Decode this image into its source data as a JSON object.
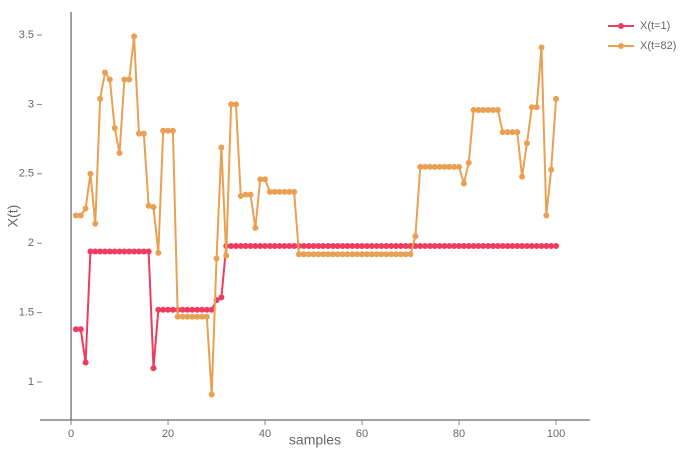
{
  "chart_data": {
    "type": "line",
    "xlabel": "samples",
    "ylabel": "X(t)",
    "x": [
      1,
      2,
      3,
      4,
      5,
      6,
      7,
      8,
      9,
      10,
      11,
      12,
      13,
      14,
      15,
      16,
      17,
      18,
      19,
      20,
      21,
      22,
      23,
      24,
      25,
      26,
      27,
      28,
      29,
      30,
      31,
      32,
      33,
      34,
      35,
      36,
      37,
      38,
      39,
      40,
      41,
      42,
      43,
      44,
      45,
      46,
      47,
      48,
      49,
      50,
      51,
      52,
      53,
      54,
      55,
      56,
      57,
      58,
      59,
      60,
      61,
      62,
      63,
      64,
      65,
      66,
      67,
      68,
      69,
      70,
      71,
      72,
      73,
      74,
      75,
      76,
      77,
      78,
      79,
      80,
      81,
      82,
      83,
      84,
      85,
      86,
      87,
      88,
      89,
      90,
      91,
      92,
      93,
      94,
      95,
      96,
      97,
      98,
      99,
      100
    ],
    "series": [
      {
        "name": "X(t=1)",
        "color": "#ef3b5f",
        "values": [
          1.38,
          1.38,
          1.14,
          1.94,
          1.94,
          1.94,
          1.94,
          1.94,
          1.94,
          1.94,
          1.94,
          1.94,
          1.94,
          1.94,
          1.94,
          1.94,
          1.1,
          1.52,
          1.52,
          1.52,
          1.52,
          1.52,
          1.52,
          1.52,
          1.52,
          1.52,
          1.52,
          1.52,
          1.52,
          1.59,
          1.61,
          1.98,
          1.98,
          1.98,
          1.98,
          1.98,
          1.98,
          1.98,
          1.98,
          1.98,
          1.98,
          1.98,
          1.98,
          1.98,
          1.98,
          1.98,
          1.98,
          1.98,
          1.98,
          1.98,
          1.98,
          1.98,
          1.98,
          1.98,
          1.98,
          1.98,
          1.98,
          1.98,
          1.98,
          1.98,
          1.98,
          1.98,
          1.98,
          1.98,
          1.98,
          1.98,
          1.98,
          1.98,
          1.98,
          1.98,
          1.98,
          1.98,
          1.98,
          1.98,
          1.98,
          1.98,
          1.98,
          1.98,
          1.98,
          1.98,
          1.98,
          1.98,
          1.98,
          1.98,
          1.98,
          1.98,
          1.98,
          1.98,
          1.98,
          1.98,
          1.98,
          1.98,
          1.98,
          1.98,
          1.98,
          1.98,
          1.98,
          1.98,
          1.98,
          1.98
        ]
      },
      {
        "name": "X(t=82)",
        "color": "#e9a052",
        "values": [
          2.2,
          2.2,
          2.25,
          2.5,
          2.14,
          3.04,
          3.23,
          3.18,
          2.83,
          2.65,
          3.18,
          3.18,
          3.49,
          2.79,
          2.79,
          2.27,
          2.26,
          1.93,
          2.81,
          2.81,
          2.81,
          1.47,
          1.47,
          1.47,
          1.47,
          1.47,
          1.47,
          1.47,
          0.91,
          1.89,
          2.69,
          1.91,
          3.0,
          3.0,
          2.34,
          2.35,
          2.35,
          2.11,
          2.46,
          2.46,
          2.37,
          2.37,
          2.37,
          2.37,
          2.37,
          2.37,
          1.92,
          1.92,
          1.92,
          1.92,
          1.92,
          1.92,
          1.92,
          1.92,
          1.92,
          1.92,
          1.92,
          1.92,
          1.92,
          1.92,
          1.92,
          1.92,
          1.92,
          1.92,
          1.92,
          1.92,
          1.92,
          1.92,
          1.92,
          1.92,
          2.05,
          2.55,
          2.55,
          2.55,
          2.55,
          2.55,
          2.55,
          2.55,
          2.55,
          2.55,
          2.43,
          2.58,
          2.96,
          2.96,
          2.96,
          2.96,
          2.96,
          2.96,
          2.8,
          2.8,
          2.8,
          2.8,
          2.48,
          2.72,
          2.98,
          2.98,
          3.41,
          2.2,
          2.53,
          3.04
        ]
      }
    ],
    "xlim": [
      -6.4,
      107
    ],
    "xticks": [
      0,
      20,
      40,
      60,
      80,
      100
    ],
    "ylim": [
      0.726,
      3.666
    ],
    "yticks": [
      1,
      1.5,
      2,
      2.5,
      3,
      3.5
    ],
    "grid": false,
    "legend": "top-right"
  }
}
